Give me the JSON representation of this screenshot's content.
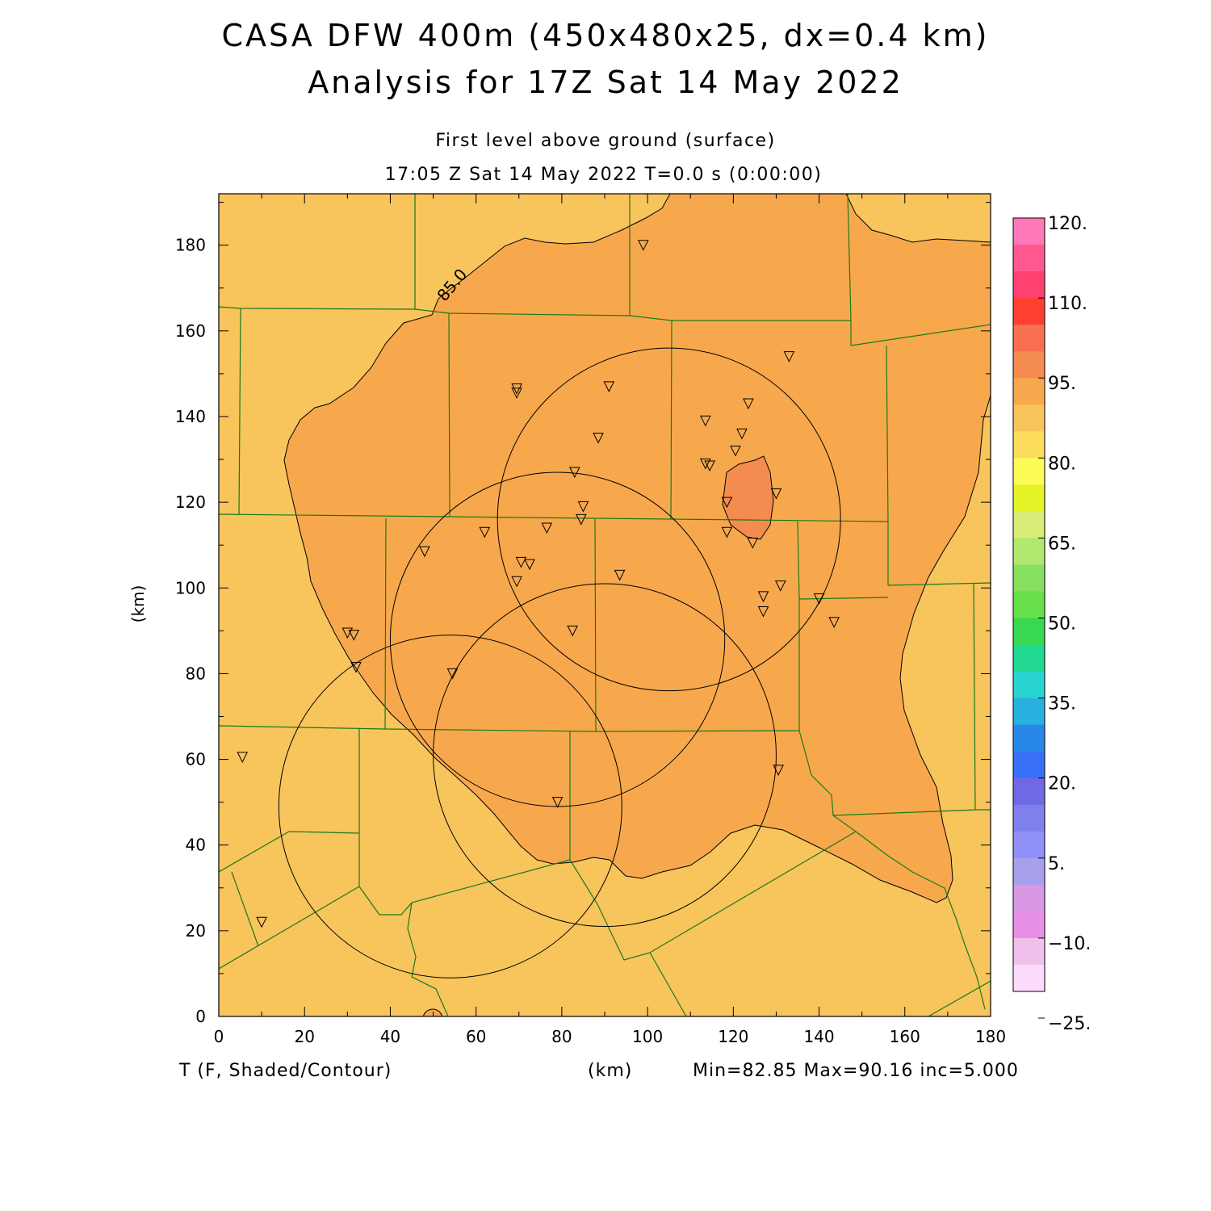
{
  "title": {
    "line1": "CASA DFW 400m (450x480x25, dx=0.4 km)",
    "line2": "Analysis for 17Z Sat 14 May 2022"
  },
  "subtitle": {
    "level": "First level above ground (surface)",
    "time": "17:05 Z Sat 14 May 2022    T=0.0 s (0:00:00)"
  },
  "footer": {
    "variable": "T (F, Shaded/Contour)",
    "x_unit": "(km)",
    "stats": "Min=82.85 Max=90.16 inc=5.000"
  },
  "map": {
    "xlabel": "(km)",
    "ylabel": "(km)",
    "xlim": [
      0,
      180
    ],
    "ylim": [
      0,
      192
    ],
    "x_ticks": [
      "0",
      "20",
      "40",
      "60",
      "80",
      "100",
      "120",
      "140",
      "160",
      "180"
    ],
    "y_ticks": [
      "0",
      "20",
      "40",
      "60",
      "80",
      "100",
      "120",
      "140",
      "160",
      "180"
    ],
    "contour_label": "85.0",
    "colors": {
      "region_80_85": "#f8c45c",
      "region_85_90": "#f8a84c",
      "region_90_95": "#f48c50",
      "county_lines": "#1a7a1a",
      "contours": "#000000"
    },
    "radar_rings": [
      {
        "center": [
          105,
          116
        ],
        "radius": 40
      },
      {
        "center": [
          79,
          88
        ],
        "radius": 39
      },
      {
        "center": [
          90,
          61
        ],
        "radius": 40
      },
      {
        "center": [
          54,
          49
        ],
        "radius": 40
      }
    ],
    "stations": [
      [
        99,
        180
      ],
      [
        69.5,
        146.5
      ],
      [
        69.5,
        145.5
      ],
      [
        91,
        147
      ],
      [
        133,
        154
      ],
      [
        123.5,
        143
      ],
      [
        113.5,
        139
      ],
      [
        122,
        136
      ],
      [
        88.5,
        135
      ],
      [
        120.5,
        132
      ],
      [
        113.5,
        129
      ],
      [
        114.5,
        128.5
      ],
      [
        83,
        127
      ],
      [
        130,
        122
      ],
      [
        118.5,
        120
      ],
      [
        85,
        119
      ],
      [
        84.5,
        116
      ],
      [
        76.5,
        114
      ],
      [
        62,
        113
      ],
      [
        118.5,
        113
      ],
      [
        124.5,
        110.5
      ],
      [
        48,
        108.5
      ],
      [
        70.5,
        106
      ],
      [
        72.5,
        105.5
      ],
      [
        93.5,
        103
      ],
      [
        69.5,
        101.5
      ],
      [
        131,
        100.5
      ],
      [
        127,
        98
      ],
      [
        140,
        97.5
      ],
      [
        127,
        94.5
      ],
      [
        143.5,
        92
      ],
      [
        82.5,
        90
      ],
      [
        30,
        89.5
      ],
      [
        31.5,
        89
      ],
      [
        32,
        81.5
      ],
      [
        54.5,
        80
      ],
      [
        130.5,
        57.5
      ],
      [
        79,
        50
      ],
      [
        5.5,
        60.5
      ],
      [
        10,
        22
      ]
    ]
  },
  "colorbar": {
    "labels": [
      "120.",
      "110.",
      "95.",
      "80.",
      "65.",
      "50.",
      "35.",
      "20.",
      "5.",
      "−10.",
      "−25."
    ],
    "colors": [
      "#ff78b8",
      "#ff5890",
      "#ff4070",
      "#ff4030",
      "#f87050",
      "#f48c50",
      "#f8a84c",
      "#f8c45c",
      "#fcdc5c",
      "#fcfc58",
      "#e4f428",
      "#d8ec78",
      "#b0e870",
      "#88e060",
      "#68e04c",
      "#38d850",
      "#20d890",
      "#28d4d0",
      "#28b0e0",
      "#2888e8",
      "#3870f8",
      "#7068e4",
      "#8080ec",
      "#9090f8",
      "#a8a0ec",
      "#d898e4",
      "#e890e8",
      "#f0c0ec",
      "#fcdcfc"
    ]
  }
}
